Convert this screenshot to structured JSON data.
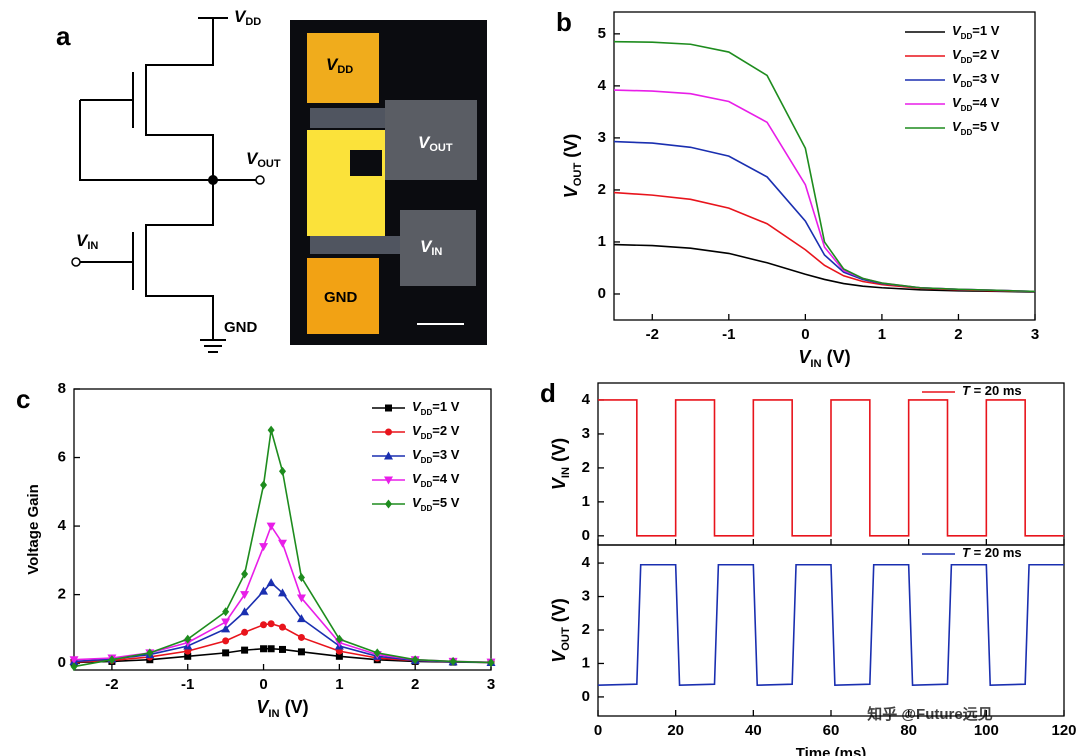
{
  "panel_a": {
    "panel_label": "a",
    "circuit": {
      "vdd": [
        "V",
        "DD"
      ],
      "vout": [
        "V",
        "OUT"
      ],
      "vin": [
        "V",
        "IN"
      ],
      "gnd": "GND"
    },
    "micrograph": {
      "vdd": [
        "V",
        "DD"
      ],
      "vout": [
        "V",
        "OUT"
      ],
      "vin": [
        "V",
        "IN"
      ],
      "gnd": "GND"
    }
  },
  "watermark": "知乎 @Future远见",
  "chart_data": [
    {
      "type": "line",
      "panel_label": "b",
      "xlabel": [
        "V",
        "IN",
        " (V)"
      ],
      "ylabel": [
        "V",
        "OUT",
        " (V)"
      ],
      "xlim": [
        -2.5,
        3
      ],
      "ylim": [
        -0.5,
        5.42
      ],
      "xticks": [
        -2,
        -1,
        0,
        1,
        2,
        3
      ],
      "yticks": [
        0,
        1,
        2,
        3,
        4,
        5
      ],
      "x": [
        -2.5,
        -2,
        -1.5,
        -1,
        -0.5,
        0,
        0.25,
        0.5,
        0.75,
        1,
        1.5,
        2,
        2.5,
        3
      ],
      "series": [
        {
          "name": [
            "V",
            "DD",
            "=1 V"
          ],
          "color": "#000000",
          "values": [
            0.95,
            0.93,
            0.88,
            0.78,
            0.6,
            0.38,
            0.28,
            0.2,
            0.15,
            0.12,
            0.08,
            0.06,
            0.05,
            0.04
          ]
        },
        {
          "name": [
            "V",
            "DD",
            "=2 V"
          ],
          "color": "#e8141c",
          "values": [
            1.95,
            1.9,
            1.82,
            1.65,
            1.35,
            0.85,
            0.55,
            0.35,
            0.24,
            0.18,
            0.11,
            0.08,
            0.06,
            0.05
          ]
        },
        {
          "name": [
            "V",
            "DD",
            "=3 V"
          ],
          "color": "#1a2fb0",
          "values": [
            2.93,
            2.9,
            2.82,
            2.65,
            2.25,
            1.4,
            0.75,
            0.42,
            0.28,
            0.2,
            0.12,
            0.09,
            0.07,
            0.05
          ]
        },
        {
          "name": [
            "V",
            "DD",
            "=4 V"
          ],
          "color": "#e81ee8",
          "values": [
            3.92,
            3.9,
            3.85,
            3.7,
            3.3,
            2.1,
            0.9,
            0.45,
            0.3,
            0.21,
            0.12,
            0.09,
            0.07,
            0.05
          ]
        },
        {
          "name": [
            "V",
            "DD",
            "=5 V"
          ],
          "color": "#1e8c1e",
          "values": [
            4.85,
            4.84,
            4.8,
            4.65,
            4.2,
            2.8,
            1.0,
            0.48,
            0.3,
            0.21,
            0.12,
            0.09,
            0.07,
            0.05
          ]
        }
      ]
    },
    {
      "type": "line",
      "panel_label": "c",
      "xlabel": [
        "V",
        "IN",
        " (V)"
      ],
      "ylabel": "Voltage Gain",
      "xlim": [
        -2.5,
        3
      ],
      "ylim": [
        -0.2,
        8
      ],
      "xticks": [
        -2,
        -1,
        0,
        1,
        2,
        3
      ],
      "yticks": [
        0,
        2,
        4,
        6,
        8
      ],
      "x": [
        -2.5,
        -2,
        -1.5,
        -1,
        -0.5,
        -0.25,
        0,
        0.1,
        0.25,
        0.5,
        1,
        1.5,
        2,
        2.5,
        3
      ],
      "series": [
        {
          "name": [
            "V",
            "DD",
            "=1 V"
          ],
          "color": "#000000",
          "marker": "square",
          "values": [
            0.02,
            0.05,
            0.1,
            0.2,
            0.3,
            0.38,
            0.42,
            0.42,
            0.4,
            0.33,
            0.2,
            0.1,
            0.05,
            0.03,
            0.02
          ]
        },
        {
          "name": [
            "V",
            "DD",
            "=2 V"
          ],
          "color": "#e8141c",
          "marker": "circle",
          "values": [
            0.03,
            0.08,
            0.18,
            0.35,
            0.65,
            0.9,
            1.12,
            1.15,
            1.05,
            0.75,
            0.35,
            0.15,
            0.07,
            0.04,
            0.02
          ]
        },
        {
          "name": [
            "V",
            "DD",
            "=3 V"
          ],
          "color": "#1a2fb0",
          "marker": "triangle-up",
          "values": [
            0.05,
            0.12,
            0.25,
            0.5,
            1.0,
            1.5,
            2.1,
            2.35,
            2.05,
            1.3,
            0.5,
            0.2,
            0.08,
            0.04,
            0.02
          ]
        },
        {
          "name": [
            "V",
            "DD",
            "=4 V"
          ],
          "color": "#e81ee8",
          "marker": "triangle-down",
          "values": [
            0.1,
            0.15,
            0.3,
            0.6,
            1.2,
            2.0,
            3.4,
            4.0,
            3.5,
            1.9,
            0.6,
            0.25,
            0.1,
            0.05,
            0.03
          ]
        },
        {
          "name": [
            "V",
            "DD",
            "=5 V"
          ],
          "color": "#1e8c1e",
          "marker": "diamond",
          "values": [
            -0.1,
            0.1,
            0.3,
            0.7,
            1.5,
            2.6,
            5.2,
            6.8,
            5.6,
            2.5,
            0.7,
            0.3,
            0.1,
            0.05,
            0.02
          ]
        }
      ]
    },
    {
      "type": "line",
      "panel_label": "d",
      "ylabel": [
        "V",
        "IN",
        " (V)"
      ],
      "xlim": [
        0,
        120
      ],
      "ylim": [
        -0.27,
        4.5
      ],
      "xticks": [
        0,
        20,
        40,
        60,
        80,
        100,
        120
      ],
      "yticks": [
        0,
        1,
        2,
        3,
        4
      ],
      "x": [
        0,
        10,
        10,
        20,
        20,
        30,
        30,
        40,
        40,
        50,
        50,
        60,
        60,
        70,
        70,
        80,
        80,
        90,
        90,
        100,
        100,
        110,
        110,
        120
      ],
      "series": [
        {
          "name": [
            "T",
            " = 20 ms"
          ],
          "color": "#e8141c",
          "values": [
            4,
            4,
            0,
            0,
            4,
            4,
            0,
            0,
            4,
            4,
            0,
            0,
            4,
            4,
            0,
            0,
            4,
            4,
            0,
            0,
            4,
            4,
            0,
            0
          ]
        }
      ]
    },
    {
      "type": "line",
      "xlabel": "Time (ms)",
      "ylabel": [
        "V",
        "OUT",
        " (V)"
      ],
      "xlim": [
        0,
        120
      ],
      "ylim": [
        -0.57,
        4.54
      ],
      "xticks": [
        0,
        20,
        40,
        60,
        80,
        100,
        120
      ],
      "yticks": [
        0,
        1,
        2,
        3,
        4
      ],
      "x": [
        0,
        10,
        11,
        20,
        21,
        30,
        31,
        40,
        41,
        50,
        51,
        60,
        61,
        70,
        71,
        80,
        81,
        90,
        91,
        100,
        101,
        110,
        111,
        120
      ],
      "series": [
        {
          "name": [
            "T",
            " = 20 ms"
          ],
          "color": "#1a2fb0",
          "values": [
            0.35,
            0.38,
            3.95,
            3.95,
            0.35,
            0.38,
            3.95,
            3.95,
            0.35,
            0.38,
            3.95,
            3.95,
            0.35,
            0.38,
            3.95,
            3.95,
            0.35,
            0.38,
            3.95,
            3.95,
            0.35,
            0.38,
            3.95,
            3.95
          ]
        }
      ]
    }
  ]
}
